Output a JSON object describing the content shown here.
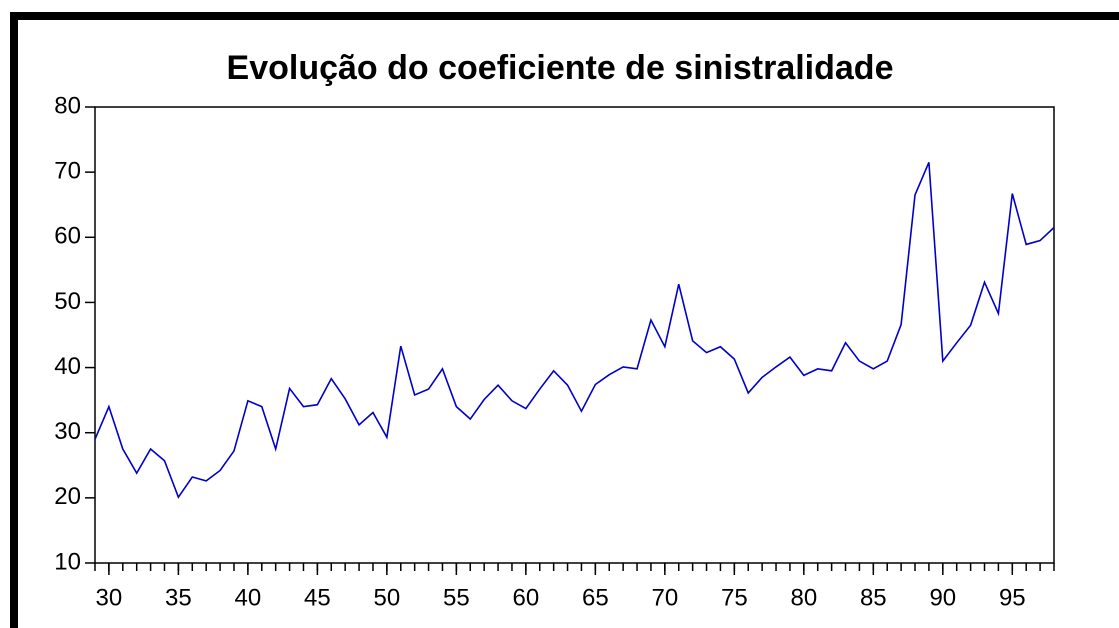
{
  "chart_data": {
    "type": "line",
    "title": "Evolução do coeficiente de sinistralidade",
    "x": [
      29,
      30,
      31,
      32,
      33,
      34,
      35,
      36,
      37,
      38,
      39,
      40,
      41,
      42,
      43,
      44,
      45,
      46,
      47,
      48,
      49,
      50,
      51,
      52,
      53,
      54,
      55,
      56,
      57,
      58,
      59,
      60,
      61,
      62,
      63,
      64,
      65,
      66,
      67,
      68,
      69,
      70,
      71,
      72,
      73,
      74,
      75,
      76,
      77,
      78,
      79,
      80,
      81,
      82,
      83,
      84,
      85,
      86,
      87,
      88,
      89,
      90,
      91,
      92,
      93,
      94,
      95,
      96,
      97,
      98
    ],
    "series": [
      {
        "name": "coeficiente de sinistralidade",
        "color": "#0000cc",
        "values": [
          29,
          34,
          27.5,
          23.8,
          27.5,
          25.7,
          20.1,
          23.2,
          22.6,
          24.2,
          27.2,
          34.9,
          34,
          27.5,
          36.8,
          34,
          34.3,
          38.3,
          35.2,
          31.2,
          33.1,
          29.3,
          43.3,
          35.8,
          36.7,
          39.8,
          34,
          32.1,
          35.1,
          37.3,
          34.9,
          33.7,
          36.7,
          39.5,
          37.3,
          33.3,
          37.4,
          38.9,
          40.1,
          39.8,
          47.3,
          43.2,
          52.8,
          44.1,
          42.3,
          43.2,
          41.3,
          36.1,
          38.5,
          40.1,
          41.6,
          38.8,
          39.8,
          39.5,
          43.8,
          41,
          39.8,
          41,
          46.6,
          66.5,
          71.5,
          41,
          43.8,
          46.5,
          53.1,
          48.3,
          66.7,
          58.9,
          59.5,
          61.5
        ]
      }
    ],
    "xlim": [
      29,
      98
    ],
    "xticks": [
      30,
      35,
      40,
      45,
      50,
      55,
      60,
      65,
      70,
      75,
      80,
      85,
      90,
      95
    ],
    "ylim": [
      10,
      80
    ],
    "yticks": [
      10,
      20,
      30,
      40,
      50,
      60,
      70,
      80
    ],
    "grid": false
  }
}
